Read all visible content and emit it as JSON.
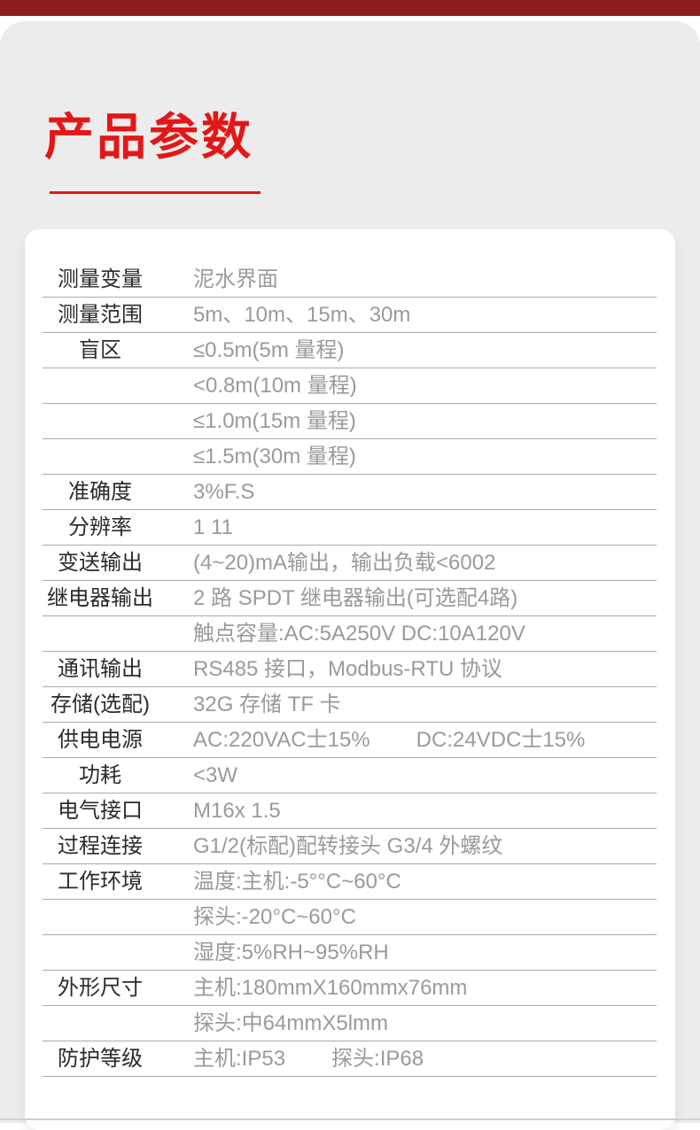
{
  "page": {
    "title": "产品参数",
    "accent_color": "#e31717",
    "top_bar_color": "#8e1c1c",
    "panel_bg": "#ececec",
    "card_bg": "#ffffff",
    "label_color": "#2b2b2b",
    "value_color": "#9a9a9a",
    "divider_color": "#aaaaaa"
  },
  "spec_table": {
    "rows": [
      {
        "label": "测量变量",
        "value": "泥水界面"
      },
      {
        "label": "测量范围",
        "value": "5m、10m、15m、30m"
      },
      {
        "label": "盲区",
        "value": "≤0.5m(5m 量程)"
      },
      {
        "label": "",
        "value": "<0.8m(10m 量程)"
      },
      {
        "label": "",
        "value": "≤1.0m(15m 量程)"
      },
      {
        "label": "",
        "value": "≤1.5m(30m 量程)"
      },
      {
        "label": "准确度",
        "value": "3%F.S"
      },
      {
        "label": "分辨率",
        "value": "1 11"
      },
      {
        "label": "变送输出",
        "value": "(4~20)mA输出，输出负载<6002"
      },
      {
        "label": "继电器输出",
        "value": "2 路 SPDT 继电器输出(可选配4路)"
      },
      {
        "label": "",
        "value": "触点容量:AC:5A250V DC:10A120V"
      },
      {
        "label": "通讯输出",
        "value": "RS485 接口，Modbus-RTU 协议"
      },
      {
        "label": "存储(选配)",
        "value": "32G 存储 TF 卡"
      },
      {
        "label": "供电电源",
        "value": "AC:220VAC士15%",
        "value2": "DC:24VDC士15%"
      },
      {
        "label": "功耗",
        "value": "<3W"
      },
      {
        "label": "电气接口",
        "value": "M16x 1.5"
      },
      {
        "label": "过程连接",
        "value": "G1/2(标配)配转接头 G3/4 外螺纹"
      },
      {
        "label": "工作环境",
        "value": "温度:主机:-5°°C~60°C"
      },
      {
        "label": "",
        "value": "探头:-20°C~60°C"
      },
      {
        "label": "",
        "value": "湿度:5%RH~95%RH"
      },
      {
        "label": "外形尺寸",
        "value": "主机:180mmX160mmx76mm"
      },
      {
        "label": "",
        "value": "探头:中64mmX5lmm"
      },
      {
        "label": "防护等级",
        "value": "主机:IP53",
        "value2": "探头:IP68"
      }
    ]
  }
}
